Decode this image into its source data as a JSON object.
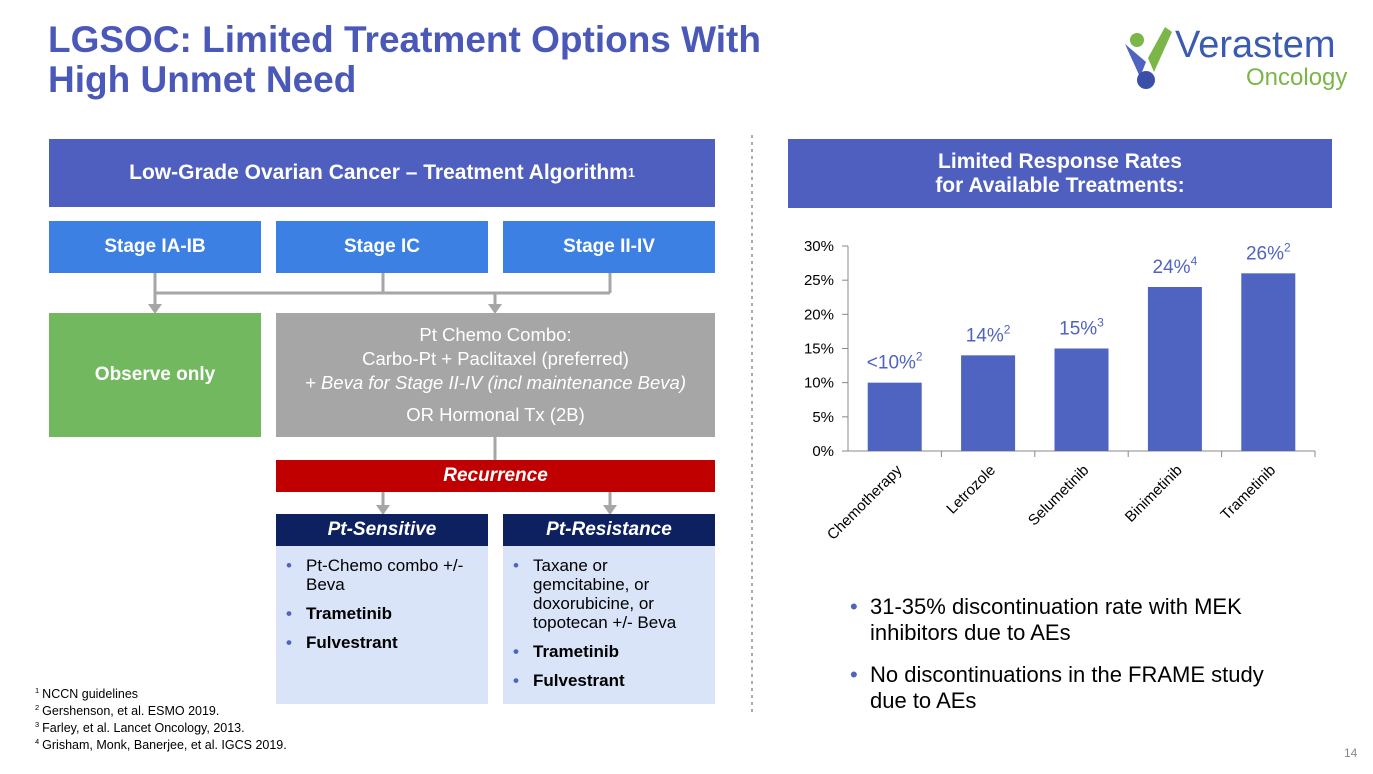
{
  "title_lines": [
    "LGSOC: Limited Treatment Options With",
    "High Unmet Need"
  ],
  "logo": {
    "name": "Verastem",
    "sub": "Oncology"
  },
  "algorithm": {
    "header": "Low-Grade Ovarian Cancer – Treatment Algorithm",
    "header_ref": "1",
    "stages": [
      "Stage IA-IB",
      "Stage IC",
      "Stage II-IV"
    ],
    "observe": "Observe only",
    "chemo_lines": [
      "Pt Chemo Combo:",
      "Carbo-Pt + Paclitaxel (preferred)",
      "+ Beva for Stage II-IV (incl maintenance Beva)",
      "OR Hormonal Tx (2B)"
    ],
    "recurrence": "Recurrence",
    "sensitive": {
      "title": "Pt-Sensitive",
      "items": [
        {
          "text": "Pt-Chemo combo +/- Beva",
          "bold": false
        },
        {
          "text": "Trametinib",
          "bold": true
        },
        {
          "text": "Fulvestrant",
          "bold": true
        }
      ]
    },
    "resistance": {
      "title": "Pt-Resistance",
      "items": [
        {
          "text": "Taxane or gemcitabine, or doxorubicine, or topotecan +/- Beva",
          "bold": false
        },
        {
          "text": "Trametinib",
          "bold": true
        },
        {
          "text": "Fulvestrant",
          "bold": true
        }
      ]
    }
  },
  "footnotes": [
    {
      "num": "1",
      "text": "NCCN guidelines"
    },
    {
      "num": "2",
      "text": "Gershenson, et al. ESMO 2019."
    },
    {
      "num": "3",
      "text": "Farley, et al. Lancet Oncology, 2013."
    },
    {
      "num": "4",
      "text": "Grisham, Monk, Banerjee, et al. IGCS 2019."
    }
  ],
  "chart_data": {
    "type": "bar",
    "title_lines": [
      "Limited Response Rates",
      "for Available Treatments:"
    ],
    "categories": [
      "Chemotherapy",
      "Letrozole",
      "Selumetinib",
      "Binimetinib",
      "Trametinib"
    ],
    "values": [
      10,
      14,
      15,
      24,
      26
    ],
    "value_labels": [
      "<10%",
      "14%",
      "15%",
      "24%",
      "26%"
    ],
    "value_label_refs": [
      "2",
      "2",
      "3",
      "4",
      "2"
    ],
    "color": "#4f63c0",
    "ylim": [
      0,
      30
    ],
    "yticks": [
      {
        "value": 0,
        "label": "0%"
      },
      {
        "value": 5,
        "label": "5%"
      },
      {
        "value": 10,
        "label": "10%"
      },
      {
        "value": 15,
        "label": "15%"
      },
      {
        "value": 20,
        "label": "20%"
      },
      {
        "value": 25,
        "label": "25%"
      },
      {
        "value": 30,
        "label": "30%"
      }
    ]
  },
  "bullets": [
    "31-35% discontinuation rate with MEK inhibitors due to AEs",
    "No discontinuations in the FRAME study due to AEs"
  ],
  "page_number": "14"
}
